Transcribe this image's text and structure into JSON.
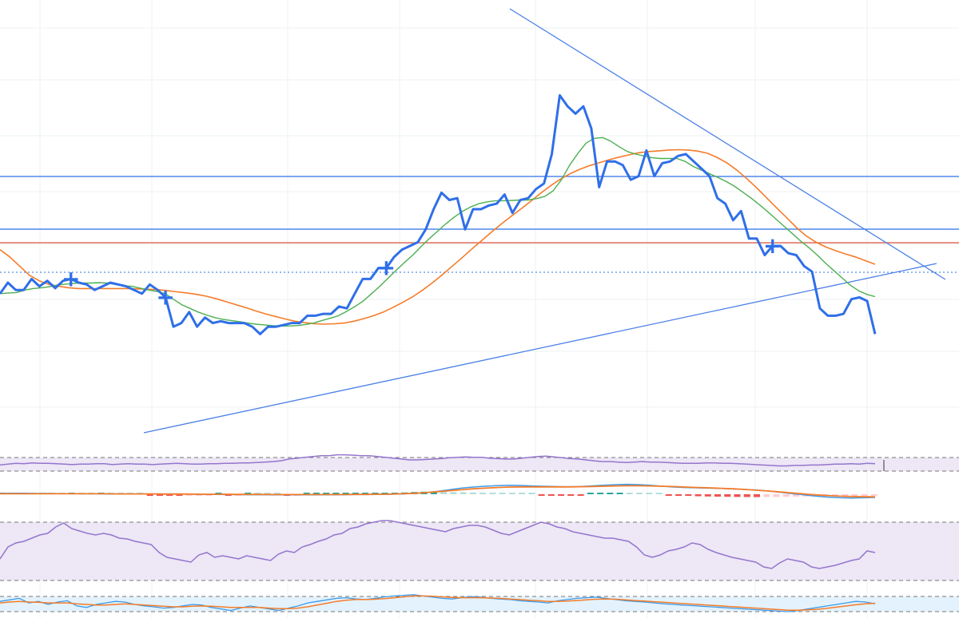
{
  "colors": {
    "price": "#2f6fe8",
    "ma_fast": "#4caf50",
    "ma_slow": "#f57c2a",
    "trendline": "#4a80e6",
    "hline_blue": "#2f6fe8",
    "hline_red": "#e0553a",
    "rsi": "#9575cd",
    "rsi_band": "#ede7f6",
    "macd_line": "#3d9be9",
    "signal_line": "#f57c2a",
    "hist_pos_strong": "#26a69a",
    "hist_pos_weak": "#b2dfdb",
    "hist_neg_strong": "#ef5350",
    "hist_neg_weak": "#ffcdd2",
    "stoch_band": "#e3f2fd",
    "grid": "#eef0f3",
    "marker": "#2f6fe8"
  },
  "chart_data": [
    {
      "type": "line",
      "panel": "price",
      "x_count": 112,
      "ylim": [
        0,
        1000
      ],
      "grid": true,
      "series": [
        {
          "role": "price",
          "values": [
            320,
            350,
            330,
            330,
            360,
            340,
            355,
            335,
            355,
            360,
            350,
            345,
            330,
            340,
            350,
            345,
            340,
            330,
            320,
            345,
            330,
            310,
            230,
            240,
            270,
            230,
            255,
            240,
            245,
            240,
            240,
            240,
            230,
            210,
            230,
            230,
            235,
            240,
            240,
            260,
            260,
            265,
            265,
            285,
            280,
            320,
            360,
            360,
            390,
            390,
            420,
            440,
            450,
            460,
            495,
            550,
            595,
            575,
            580,
            495,
            550,
            550,
            560,
            565,
            590,
            540,
            575,
            580,
            605,
            620,
            700,
            860,
            830,
            810,
            830,
            770,
            610,
            680,
            680,
            670,
            630,
            640,
            710,
            640,
            675,
            680,
            695,
            700,
            680,
            660,
            640,
            580,
            565,
            520,
            545,
            470,
            470,
            425,
            450,
            450,
            430,
            425,
            395,
            380,
            280,
            260,
            260,
            265,
            305,
            310,
            300,
            210
          ],
          "source": "price"
        },
        {
          "role": "ma_fast",
          "values": [
            320,
            322,
            323,
            330,
            334,
            336,
            339,
            344,
            346,
            348,
            349,
            349,
            350,
            349,
            345,
            341,
            340,
            335,
            330,
            326,
            320,
            305,
            290,
            280,
            270,
            262,
            255,
            250,
            247,
            244,
            240,
            237,
            235,
            233,
            232,
            232,
            233,
            236,
            240,
            247,
            253,
            260,
            272,
            285,
            300,
            320,
            340,
            362,
            384,
            405,
            425,
            448,
            470,
            490,
            510,
            528,
            544,
            556,
            565,
            570,
            573,
            573,
            574,
            575,
            575,
            579,
            585,
            600,
            630,
            670,
            702,
            730,
            743,
            745,
            735,
            720,
            707,
            700,
            695,
            690,
            688,
            688,
            688,
            680,
            666,
            656,
            646,
            636,
            625,
            612,
            596,
            580,
            562,
            543,
            523,
            503,
            483,
            463,
            445,
            425,
            403,
            383,
            363,
            343,
            328,
            318,
            312
          ],
          "source": "ma"
        },
        {
          "role": "ma_slow",
          "values": [
            440,
            420,
            395,
            370,
            355,
            345,
            340,
            336,
            334,
            334,
            334,
            334,
            334,
            334,
            333,
            332,
            331,
            328,
            325,
            322,
            318,
            313,
            306,
            298,
            290,
            282,
            273,
            265,
            258,
            251,
            245,
            241,
            238,
            237,
            238,
            240,
            245,
            252,
            260,
            270,
            283,
            297,
            312,
            330,
            350,
            372,
            395,
            418,
            442,
            465,
            488,
            510,
            531,
            551,
            572,
            594,
            614,
            632,
            647,
            659,
            669,
            677,
            685,
            692,
            698,
            704,
            707,
            709,
            711,
            712,
            711,
            708,
            702,
            690,
            675,
            655,
            632,
            607,
            580,
            553,
            527,
            500,
            477,
            460,
            447,
            437,
            428,
            420,
            410,
            400
          ],
          "source": "ma"
        }
      ],
      "markers": [
        {
          "label": "+",
          "series": "price",
          "x_index": 9
        },
        {
          "label": "+",
          "series": "price",
          "x_index": 21
        },
        {
          "label": "+",
          "series": "price",
          "x_index": 49
        },
        {
          "label": "+",
          "series": "price",
          "x_index": 98
        }
      ]
    },
    {
      "type": "line",
      "panel": "rsi_small",
      "ylim": [
        0,
        100
      ],
      "series": [
        {
          "role": "rsi",
          "values": [
            48,
            50,
            52,
            51,
            53,
            52,
            52,
            51,
            50,
            49,
            50,
            50,
            51,
            51,
            49,
            50,
            51,
            50,
            50,
            49,
            50,
            51,
            52,
            51,
            50,
            50,
            51,
            51,
            52,
            52,
            53,
            53,
            54,
            55,
            56,
            58,
            62,
            64,
            66,
            68,
            70,
            70,
            72,
            72,
            71,
            70,
            70,
            68,
            66,
            64,
            62,
            60,
            60,
            61,
            62,
            63,
            65,
            66,
            67,
            66,
            66,
            64,
            63,
            62,
            62,
            64,
            66,
            68,
            69,
            67,
            65,
            63,
            62,
            60,
            58,
            56,
            56,
            55,
            54,
            55,
            56,
            55,
            55,
            54,
            53,
            52,
            52,
            52,
            53,
            53,
            52,
            52,
            51,
            50,
            49,
            48,
            47,
            46,
            46,
            47,
            47,
            48,
            48,
            49,
            50,
            50,
            51,
            50,
            52,
            51
          ]
        }
      ],
      "bands": [
        30,
        70
      ]
    },
    {
      "type": "bar",
      "panel": "macd",
      "ylim": [
        -1,
        1
      ],
      "series": [
        {
          "role": "histogram",
          "values": [
            0.05,
            0.05,
            0.04,
            0.03,
            0.02,
            0.02,
            0.01,
            0.02,
            0.01,
            0.01,
            0.02,
            0.02,
            0.01,
            0.01,
            0.0,
            -0.02,
            -0.03,
            -0.05,
            -0.06,
            -0.05,
            -0.04,
            -0.02,
            0.0,
            -0.02,
            -0.01,
            0.01,
            0.01,
            0.0,
            0.0,
            -0.01,
            -0.01,
            0.01,
            0.02,
            0.03,
            0.04,
            0.06,
            0.08,
            0.1,
            0.12,
            0.14,
            0.18,
            0.22,
            0.28,
            0.32,
            0.35,
            0.32,
            0.28,
            0.25,
            0.22,
            0.18,
            0.14,
            0.1,
            0.08,
            0.05,
            0.02,
            -0.02,
            -0.05,
            -0.08,
            -0.1,
            -0.12,
            0.1,
            0.15,
            0.18,
            0.2,
            0.2,
            0.18,
            0.12,
            0.05,
            -0.05,
            -0.12,
            -0.2,
            -0.25,
            -0.28,
            -0.3,
            -0.32,
            -0.34,
            -0.35,
            -0.36,
            -0.35,
            -0.34,
            -0.32,
            -0.3,
            -0.28,
            -0.25,
            -0.22,
            -0.18,
            -0.14,
            -0.1,
            -0.06,
            -0.02
          ]
        },
        {
          "role": "macd_line",
          "values": [
            0.05,
            0.06,
            0.06,
            0.05,
            0.05,
            0.04,
            0.04,
            0.03,
            0.03,
            0.02,
            0.02,
            0.02,
            0.02,
            0.02,
            0.02,
            0.02,
            0.01,
            0.0,
            -0.01,
            -0.02,
            -0.02,
            -0.03,
            -0.03,
            -0.04,
            -0.04,
            -0.04,
            -0.04,
            -0.04,
            -0.03,
            -0.03,
            -0.02,
            -0.02,
            -0.01,
            0.0,
            0.02,
            0.05,
            0.1,
            0.18,
            0.28,
            0.38,
            0.45,
            0.5,
            0.54,
            0.56,
            0.55,
            0.52,
            0.5,
            0.48,
            0.47,
            0.48,
            0.52,
            0.56,
            0.6,
            0.62,
            0.6,
            0.56,
            0.5,
            0.45,
            0.42,
            0.4,
            0.38,
            0.36,
            0.33,
            0.3,
            0.26,
            0.2,
            0.12,
            0.04,
            -0.04,
            -0.12,
            -0.18,
            -0.22,
            -0.24,
            -0.22,
            -0.2
          ]
        },
        {
          "role": "signal_line",
          "values": [
            0.03,
            0.03,
            0.03,
            0.03,
            0.03,
            0.03,
            0.03,
            0.03,
            0.03,
            0.03,
            0.02,
            0.02,
            0.02,
            0.02,
            0.01,
            0.01,
            0.01,
            0.0,
            0.0,
            0.0,
            -0.01,
            -0.01,
            -0.01,
            -0.02,
            -0.02,
            -0.02,
            -0.02,
            -0.02,
            -0.02,
            -0.02,
            -0.01,
            -0.01,
            0.0,
            0.01,
            0.03,
            0.06,
            0.1,
            0.16,
            0.22,
            0.28,
            0.34,
            0.38,
            0.42,
            0.45,
            0.46,
            0.46,
            0.46,
            0.46,
            0.46,
            0.47,
            0.48,
            0.5,
            0.52,
            0.53,
            0.53,
            0.52,
            0.5,
            0.48,
            0.45,
            0.42,
            0.4,
            0.37,
            0.34,
            0.3,
            0.25,
            0.2,
            0.14,
            0.08,
            0.02,
            -0.04,
            -0.08,
            -0.12,
            -0.14,
            -0.16,
            -0.16
          ]
        }
      ]
    },
    {
      "type": "line",
      "panel": "rsi_large",
      "ylim": [
        0,
        100
      ],
      "series": [
        {
          "role": "rsi",
          "values": [
            40,
            55,
            60,
            62,
            66,
            70,
            72,
            80,
            85,
            78,
            75,
            72,
            70,
            72,
            70,
            66,
            65,
            62,
            60,
            58,
            48,
            42,
            40,
            38,
            36,
            45,
            48,
            42,
            44,
            42,
            40,
            44,
            42,
            40,
            38,
            46,
            50,
            48,
            55,
            58,
            62,
            65,
            70,
            72,
            78,
            80,
            84,
            86,
            88,
            88,
            86,
            84,
            82,
            80,
            78,
            76,
            74,
            78,
            80,
            82,
            82,
            80,
            76,
            72,
            70,
            74,
            78,
            82,
            86,
            84,
            80,
            78,
            74,
            72,
            70,
            68,
            66,
            66,
            64,
            62,
            55,
            45,
            42,
            45,
            50,
            52,
            55,
            60,
            58,
            52,
            48,
            45,
            42,
            40,
            38,
            36,
            30,
            28,
            35,
            40,
            38,
            36,
            30,
            28,
            30,
            32,
            35,
            38,
            40,
            50,
            48
          ]
        }
      ],
      "bands": [
        30,
        70
      ]
    },
    {
      "type": "line",
      "panel": "stochastic",
      "ylim": [
        0,
        100
      ],
      "series": [
        {
          "role": "k_line",
          "values": [
            60,
            65,
            70,
            55,
            60,
            50,
            58,
            62,
            45,
            40,
            50,
            55,
            60,
            58,
            50,
            45,
            42,
            38,
            40,
            45,
            50,
            48,
            40,
            35,
            30,
            38,
            45,
            40,
            35,
            30,
            38,
            45,
            55,
            60,
            65,
            70,
            72,
            68,
            66,
            70,
            75,
            78,
            80,
            82,
            78,
            74,
            70,
            68,
            72,
            76,
            74,
            70,
            68,
            66,
            62,
            60,
            58,
            55,
            62,
            66,
            70,
            72,
            74,
            70,
            66,
            62,
            60,
            58,
            55,
            52,
            50,
            48,
            46,
            44,
            42,
            40,
            38,
            36,
            34,
            32,
            30,
            28,
            26,
            30,
            35,
            40,
            45,
            50,
            55,
            60,
            58,
            52
          ]
        },
        {
          "role": "d_line",
          "values": [
            55,
            58,
            60,
            58,
            57,
            55,
            55,
            55,
            52,
            50,
            48,
            48,
            50,
            52,
            50,
            48,
            46,
            44,
            42,
            42,
            44,
            45,
            44,
            42,
            40,
            40,
            40,
            40,
            38,
            36,
            36,
            38,
            42,
            48,
            54,
            60,
            64,
            66,
            66,
            67,
            69,
            72,
            75,
            78,
            78,
            77,
            75,
            73,
            72,
            72,
            72,
            71,
            70,
            68,
            66,
            64,
            62,
            60,
            60,
            61,
            63,
            65,
            67,
            68,
            67,
            65,
            63,
            61,
            59,
            57,
            55,
            53,
            51,
            49,
            47,
            45,
            43,
            41,
            39,
            37,
            35,
            33,
            31,
            31,
            32,
            34,
            37,
            41,
            45,
            49,
            52,
            54
          ]
        }
      ],
      "bands": [
        20,
        80
      ]
    }
  ]
}
